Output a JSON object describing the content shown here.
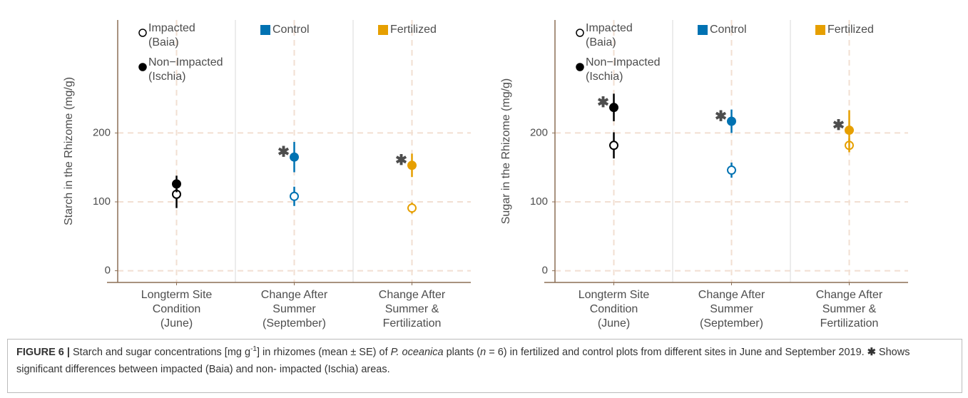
{
  "chart_data": [
    {
      "type": "dot",
      "ylabel": "Starch in the Rhizome (mg/g)",
      "categories": [
        "Longterm Site\nCondition\n(June)",
        "Change After\nSummer\n(September)",
        "Change After\nSummer &\nFertilization"
      ],
      "facet_colors": [
        "#000000",
        "#0072b2",
        "#e69f00"
      ],
      "series": [
        {
          "name": "Impacted\n(Baia)",
          "marker": "open",
          "values": [
            111,
            108,
            91
          ],
          "errors": [
            20,
            14,
            8
          ]
        },
        {
          "name": "Non−Impacted\n(Ischia)",
          "marker": "filled",
          "values": [
            126,
            165,
            153
          ],
          "errors": [
            12,
            22,
            17
          ]
        }
      ],
      "color_legend": [
        {
          "name": "Control",
          "color": "#0072b2"
        },
        {
          "name": "Fertilized",
          "color": "#e69f00"
        }
      ],
      "annotation": "✱",
      "significant": [
        false,
        true,
        true
      ],
      "ylim": [
        -17,
        364
      ],
      "yticks": [
        0,
        100,
        200
      ],
      "grid": true
    },
    {
      "type": "dot",
      "ylabel": "Sugar in the Rhizome (mg/g)",
      "categories": [
        "Longterm Site\nCondition\n(June)",
        "Change After\nSummer\n(September)",
        "Change After\nSummer &\nFertilization"
      ],
      "facet_colors": [
        "#000000",
        "#0072b2",
        "#e69f00"
      ],
      "series": [
        {
          "name": "Impacted\n(Baia)",
          "marker": "open",
          "values": [
            182,
            146,
            182
          ],
          "errors": [
            19,
            11,
            10
          ]
        },
        {
          "name": "Non−Impacted\n(Ischia)",
          "marker": "filled",
          "values": [
            237,
            217,
            204
          ],
          "errors": [
            20,
            17,
            29
          ]
        }
      ],
      "color_legend": [
        {
          "name": "Control",
          "color": "#0072b2"
        },
        {
          "name": "Fertilized",
          "color": "#e69f00"
        }
      ],
      "annotation": "✱",
      "significant": [
        true,
        true,
        true
      ],
      "ylim": [
        -17,
        364
      ],
      "yticks": [
        0,
        100,
        200
      ],
      "grid": true
    }
  ],
  "caption": [
    {
      "text": "FIGURE 6 |",
      "style": "bold"
    },
    {
      "text": " Starch and sugar concentrations [mg g"
    },
    {
      "text": "-1",
      "style": "sup"
    },
    {
      "text": "] in rhizomes (mean ± SE) of "
    },
    {
      "text": "P. oceanica",
      "style": "italic"
    },
    {
      "text": " plants ("
    },
    {
      "text": "n",
      "style": "italic"
    },
    {
      "text": " = 6) in fertilized and control plots from different sites in June and September 2019. "
    },
    {
      "text": "✱",
      "style": "bold"
    },
    {
      "text": " Shows significant differences between impacted (Baia) and non- impacted (Ischia) areas."
    }
  ]
}
